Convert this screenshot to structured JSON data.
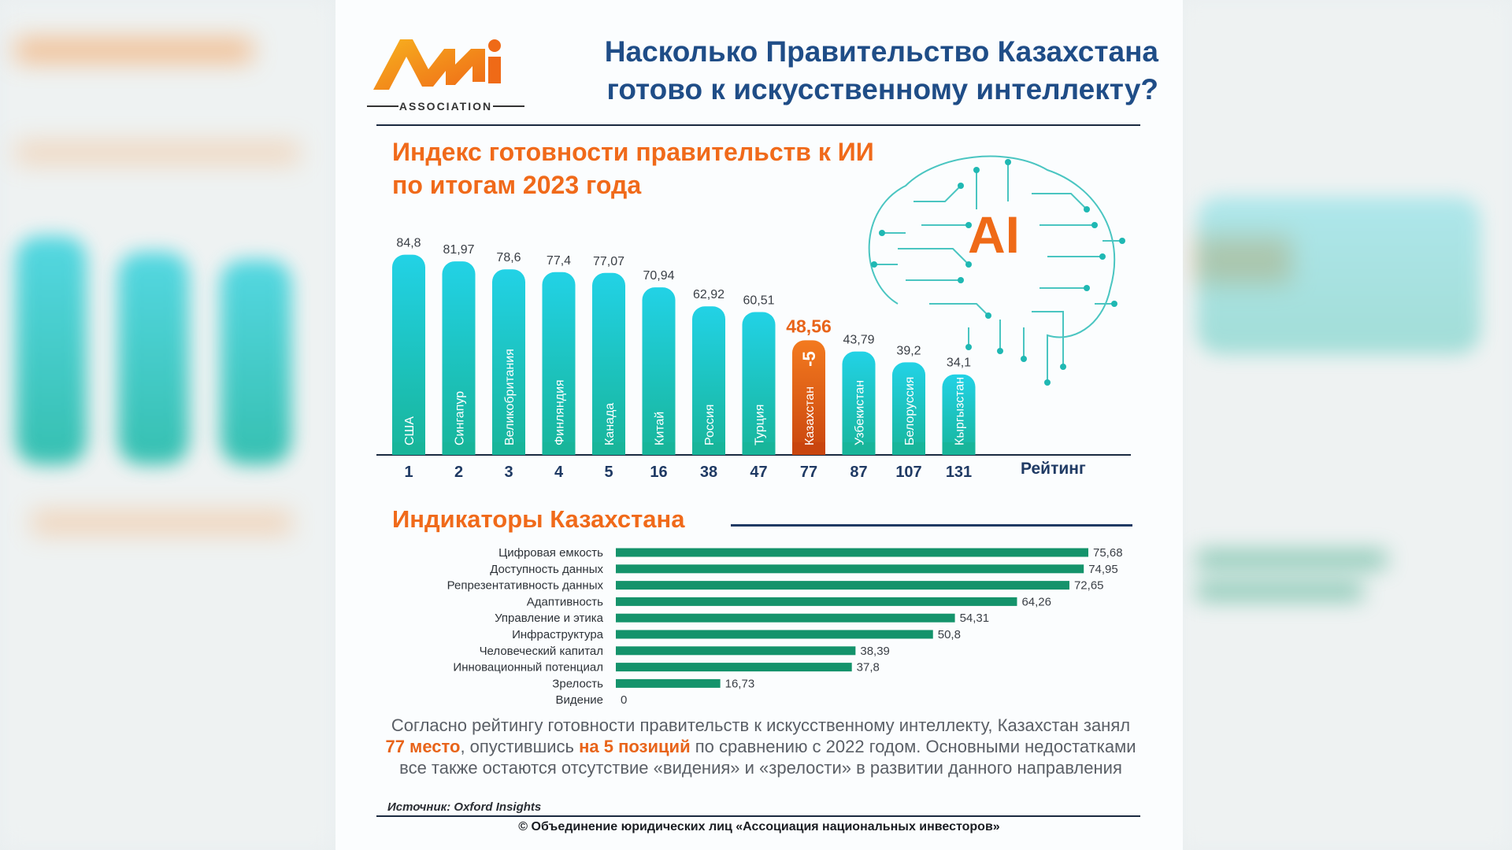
{
  "logo": {
    "mark": "ANI",
    "tagline": "ASSOCIATION"
  },
  "header": {
    "title_line1": "Насколько Правительство Казахстана",
    "title_line2": "готово к искусственному интеллекту?"
  },
  "index_section": {
    "title_line1": "Индекс готовности правительств к ИИ",
    "title_line2": "по итогам 2023 года",
    "ai_label": "AI",
    "rating_label": "Рейтинг"
  },
  "chart_data": [
    {
      "type": "bar",
      "title": "Индекс готовности правительств к ИИ по итогам 2023 года",
      "categories": [
        "США",
        "Сингапур",
        "Великобритания",
        "Финляндия",
        "Канада",
        "Китай",
        "Россия",
        "Турция",
        "Казахстан",
        "Узбекистан",
        "Белоруссия",
        "Кыргызстан"
      ],
      "values": [
        84.8,
        81.97,
        78.6,
        77.4,
        77.07,
        70.94,
        62.92,
        60.51,
        48.56,
        43.79,
        39.2,
        34.1
      ],
      "value_labels": [
        "84,8",
        "81,97",
        "78,6",
        "77,4",
        "77,07",
        "70,94",
        "62,92",
        "60,51",
        "48,56",
        "43,79",
        "39,2",
        "34,1"
      ],
      "ranks": [
        "1",
        "2",
        "3",
        "4",
        "5",
        "16",
        "38",
        "47",
        "77",
        "87",
        "107",
        "131"
      ],
      "highlight_index": 8,
      "highlight_annotation": "-5",
      "xlabel": "Рейтинг",
      "ylim": [
        0,
        90
      ],
      "colors": {
        "bar_top": "#22d2e6",
        "bar_bottom": "#18b59a",
        "highlight_top": "#f37a1f",
        "highlight_bottom": "#c9450e"
      }
    },
    {
      "type": "bar",
      "orientation": "horizontal",
      "title": "Индикаторы Казахстана",
      "categories": [
        "Цифровая емкость",
        "Доступность данных",
        "Репрезентативность данных",
        "Адаптивность",
        "Управление и этика",
        "Инфраструктура",
        "Человеческий капитал",
        "Инновационный потенциал",
        "Зрелость",
        "Видение"
      ],
      "values": [
        75.68,
        74.95,
        72.65,
        64.26,
        54.31,
        50.8,
        38.39,
        37.8,
        16.73,
        0
      ],
      "value_labels": [
        "75,68",
        "74,95",
        "72,65",
        "64,26",
        "54,31",
        "50,8",
        "38,39",
        "37,8",
        "16,73",
        "0"
      ],
      "xlim": [
        0,
        80
      ],
      "colors": {
        "bar": "#14936b"
      }
    }
  ],
  "indicators_section": {
    "title": "Индикаторы Казахстана"
  },
  "summary": {
    "part1": "Согласно рейтингу готовности правительств к искусственному интеллекту, Казахстан занял ",
    "hl1": "77 место",
    "part2": ", опустившись ",
    "hl2": "на 5 позиций",
    "part3": " по сравнению с 2022 годом. Основными недостатками все также остаются отсутствие «видения» и «зрелости» в развитии данного направления"
  },
  "source": "Источник: Oxford Insights",
  "copyright": "© Объединение юридических лиц «Ассоциация национальных инвесторов»"
}
